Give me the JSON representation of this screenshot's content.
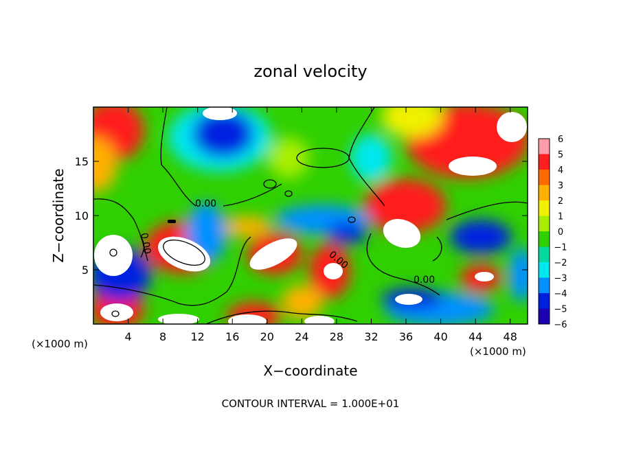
{
  "chart_data": {
    "type": "heatmap",
    "title": "zonal velocity",
    "xlabel": "X−coordinate",
    "ylabel": "Z−coordinate",
    "x_unit_label": "(×1000 m)",
    "x_unit_label_right": "(×1000 m)",
    "xlim": [
      0,
      50
    ],
    "ylim": [
      0,
      20
    ],
    "x_ticks": [
      4,
      8,
      12,
      16,
      20,
      24,
      28,
      32,
      36,
      40,
      44,
      48
    ],
    "y_ticks": [
      5,
      10,
      15
    ],
    "colorbar": {
      "levels": [
        6,
        5,
        4,
        3,
        2,
        1,
        0,
        -1,
        -2,
        -3,
        -4,
        -5,
        -6
      ],
      "colors": [
        "#ff9aa8",
        "#ff1e1e",
        "#ff6a00",
        "#ffb000",
        "#f0f000",
        "#a8ee00",
        "#30d000",
        "#00d8a0",
        "#00e8f0",
        "#0090ff",
        "#0020e0",
        "#1a00b0",
        "#8a00c8"
      ]
    },
    "contour_label": "0.00",
    "footer": "CONTOUR INTERVAL = 1.000E+01"
  }
}
